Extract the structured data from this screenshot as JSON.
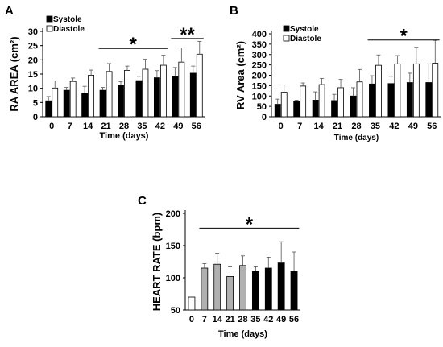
{
  "colors": {
    "systole": "#000000",
    "diastole": "#ffffff",
    "hr_light": "#b0b0b0",
    "hr_dark": "#000000",
    "axis": "#000000"
  },
  "chart_data": [
    {
      "panel": "A",
      "type": "bar",
      "ylabel": "RA AREA (cm²)",
      "xlabel": "Time (days)",
      "ylim": [
        0,
        30
      ],
      "yticks": [
        0,
        5,
        10,
        15,
        20,
        25,
        30
      ],
      "categories": [
        "0",
        "7",
        "14",
        "21",
        "28",
        "35",
        "42",
        "49",
        "56"
      ],
      "legend_position": "top-left",
      "series": [
        {
          "name": "Systole",
          "values": [
            5.6,
            9.3,
            8.2,
            9.3,
            11.1,
            12.7,
            13.7,
            14.3,
            15.3
          ],
          "errors": [
            1.5,
            1.0,
            2.5,
            1.0,
            1.2,
            1.5,
            2.5,
            3.0,
            2.5
          ]
        },
        {
          "name": "Diastole",
          "values": [
            10.1,
            12.4,
            14.6,
            15.9,
            16.3,
            16.7,
            18.1,
            19.2,
            22.0
          ],
          "errors": [
            2.5,
            1.2,
            1.8,
            2.8,
            1.5,
            3.5,
            3.5,
            5.0,
            4.5
          ]
        }
      ],
      "annotations": [
        {
          "text": "*",
          "from_category": "21",
          "to_category": "42",
          "y": 24
        },
        {
          "text": "**",
          "from_category": "49",
          "to_category": "56",
          "y": 27.5
        }
      ]
    },
    {
      "panel": "B",
      "type": "bar",
      "ylabel": "RV Area (cm²)",
      "xlabel": "Time (days)",
      "ylim": [
        0,
        400
      ],
      "yticks": [
        0,
        50,
        100,
        150,
        200,
        250,
        300,
        350,
        400
      ],
      "categories": [
        "0",
        "7",
        "14",
        "21",
        "28",
        "35",
        "42",
        "49",
        "56"
      ],
      "legend_position": "top-center",
      "series": [
        {
          "name": "Systole",
          "values": [
            60,
            75,
            80,
            78,
            100,
            158,
            160,
            165,
            165
          ],
          "errors": [
            25,
            5,
            40,
            30,
            40,
            40,
            35,
            45,
            90
          ]
        },
        {
          "name": "Diastole",
          "values": [
            118,
            148,
            155,
            140,
            168,
            248,
            255,
            255,
            258
          ],
          "errors": [
            35,
            15,
            30,
            40,
            60,
            50,
            40,
            80,
            110
          ]
        }
      ],
      "annotations": [
        {
          "text": "*",
          "from_category": "35",
          "to_category": "56",
          "y": 370
        }
      ]
    },
    {
      "panel": "C",
      "type": "bar",
      "ylabel": "HEART RATE (bpm)",
      "xlabel": "Time (days)",
      "ylim": [
        50,
        200
      ],
      "yticks": [
        50,
        100,
        150,
        200
      ],
      "categories": [
        "0",
        "7",
        "14",
        "21",
        "28",
        "35",
        "42",
        "49",
        "56"
      ],
      "series": [
        {
          "values": [
            70,
            115,
            121,
            102,
            119,
            110,
            115,
            123,
            110
          ],
          "errors": [
            0,
            7,
            17,
            15,
            15,
            7,
            17,
            33,
            30
          ],
          "fills": [
            "white",
            "light",
            "light",
            "light",
            "light",
            "dark",
            "dark",
            "dark",
            "dark"
          ]
        }
      ],
      "annotations": [
        {
          "text": "*",
          "from_category": "7",
          "to_category": "56",
          "y": 177
        }
      ]
    }
  ]
}
